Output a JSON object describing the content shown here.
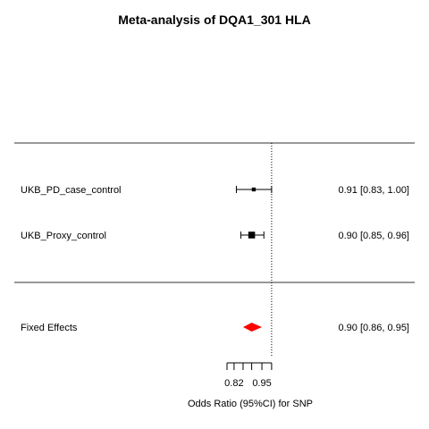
{
  "chart_data": {
    "type": "forest",
    "title": "Meta-analysis of DQA1_301 HLA",
    "xlabel": "Odds Ratio (95%CI) for SNP",
    "x_scale": "log",
    "xlim": [
      0.79,
      1.01
    ],
    "reference_line": 1.0,
    "tick_values": [
      0.79,
      0.82,
      0.86,
      0.9,
      0.95,
      1.0
    ],
    "tick_labels": [
      "",
      "0.82",
      "",
      "",
      "0.95",
      ""
    ],
    "studies": [
      {
        "label": "UKB_PD_case_control",
        "estimate": 0.91,
        "ci_low": 0.83,
        "ci_high": 1.0,
        "text": "0.91 [0.83, 1.00]",
        "weight": 0.15
      },
      {
        "label": "UKB_Proxy_control",
        "estimate": 0.9,
        "ci_low": 0.85,
        "ci_high": 0.96,
        "text": "0.90 [0.85, 0.96]",
        "weight": 0.85
      }
    ],
    "summary": {
      "label": "Fixed Effects",
      "estimate": 0.9,
      "ci_low": 0.86,
      "ci_high": 0.95,
      "text": "0.90 [0.86, 0.95]",
      "color": "#ff0000"
    }
  }
}
